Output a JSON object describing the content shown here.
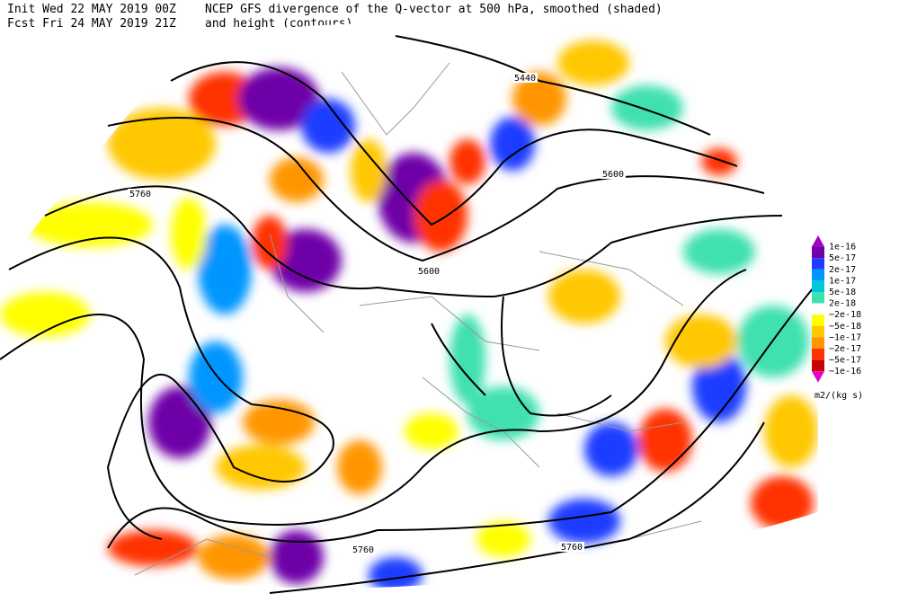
{
  "header": {
    "init": "Init  Wed 22 MAY 2019 00Z",
    "forecast": "Fcst Fri 24 MAY 2019 21Z",
    "title": "NCEP GFS divergence of the Q-vector at 500 hPa, smoothed (shaded)",
    "subtitle": "and height (contours)"
  },
  "contour_labels": [
    "5440",
    "5600",
    "5760",
    "5600",
    "5760",
    "5760"
  ],
  "colorbar": {
    "labels": [
      "1e-16",
      "5e-17",
      "2e-17",
      "1e-17",
      "5e-18",
      "2e-18",
      "−2e-18",
      "−5e-18",
      "−1e-17",
      "−2e-17",
      "−5e-17",
      "−1e-16"
    ],
    "colors": [
      "#a000c8",
      "#6e00a8",
      "#1e3cff",
      "#0096ff",
      "#00c8dc",
      "#40e0b0",
      "#ffffff",
      "#ffff00",
      "#ffc800",
      "#ff9600",
      "#ff3200",
      "#c80000",
      "#e600c8"
    ],
    "unit": "m2/(kg s)"
  }
}
